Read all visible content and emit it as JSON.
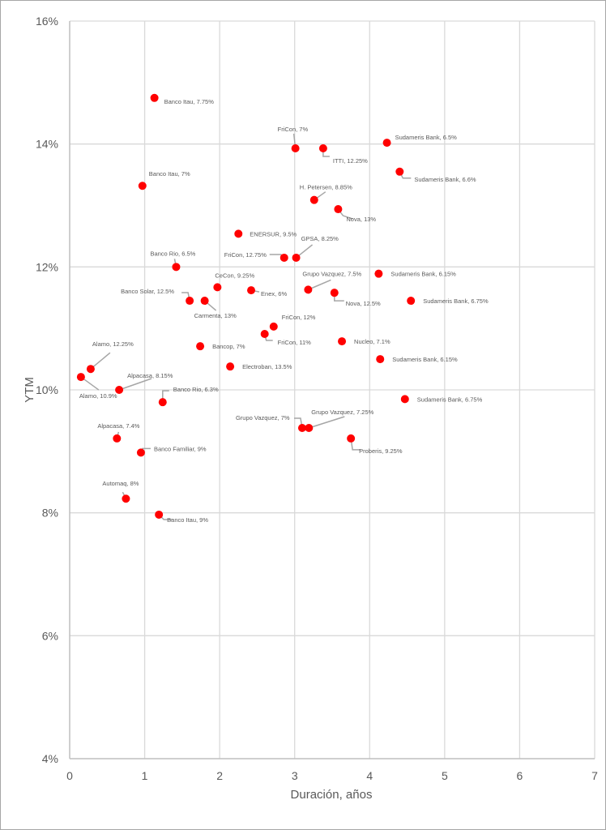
{
  "chart_data": {
    "type": "scatter",
    "title": "",
    "xlabel": "Duración, años",
    "ylabel": "YTM",
    "xlim": [
      0,
      7
    ],
    "ylim": [
      4,
      16
    ],
    "x_ticks": [
      "0",
      "1",
      "2",
      "3",
      "4",
      "5",
      "6",
      "7"
    ],
    "y_ticks": [
      "4%",
      "6%",
      "8%",
      "10%",
      "12%",
      "14%",
      "16%"
    ],
    "grid": true,
    "legend": "none",
    "marker_color": "#ff0000",
    "grid_color": "#d9d9d9",
    "points": [
      {
        "label": "Banco Itau, 7.75%",
        "x": 1.13,
        "y": 14.75
      },
      {
        "label": "Banco Itau, 7%",
        "x": 0.97,
        "y": 13.32
      },
      {
        "label": "FriCon, 7%",
        "x": 3.01,
        "y": 13.93
      },
      {
        "label": "ITTI, 12.25%",
        "x": 3.38,
        "y": 13.93
      },
      {
        "label": "Sudameris Bank, 6.5%",
        "x": 4.23,
        "y": 14.02
      },
      {
        "label": "Sudameris Bank, 6.6%",
        "x": 4.4,
        "y": 13.55
      },
      {
        "label": "H. Petersen, 8.85%",
        "x": 3.26,
        "y": 13.09
      },
      {
        "label": "Nova, 13%",
        "x": 3.58,
        "y": 12.94
      },
      {
        "label": "ENERSUR, 9.5%",
        "x": 2.25,
        "y": 12.54
      },
      {
        "label": "FriCon, 12.75%",
        "x": 2.86,
        "y": 12.15
      },
      {
        "label": "GPSA, 8.25%",
        "x": 3.02,
        "y": 12.15
      },
      {
        "label": "Banco Rio, 6.5%",
        "x": 1.42,
        "y": 12.0
      },
      {
        "label": "CeCon, 9.25%",
        "x": 1.97,
        "y": 11.67
      },
      {
        "label": "Enex, 6%",
        "x": 2.42,
        "y": 11.62
      },
      {
        "label": "Banco Solar, 12.5%",
        "x": 1.6,
        "y": 11.45
      },
      {
        "label": "Carmenta, 13%",
        "x": 1.8,
        "y": 11.45
      },
      {
        "label": "Grupo Vazquez, 7.5%",
        "x": 3.18,
        "y": 11.63
      },
      {
        "label": "Nova, 12.5%",
        "x": 3.53,
        "y": 11.58
      },
      {
        "label": "Sudameris Bank, 6.15%",
        "x": 4.12,
        "y": 11.89
      },
      {
        "label": "Sudameris Bank, 6.75%",
        "x": 4.55,
        "y": 11.45
      },
      {
        "label": "FriCon, 12%",
        "x": 2.72,
        "y": 11.03
      },
      {
        "label": "FriCon, 11%",
        "x": 2.6,
        "y": 10.91
      },
      {
        "label": "Nucleo, 7.1%",
        "x": 3.63,
        "y": 10.79
      },
      {
        "label": "Sudameris Bank, 6.15%",
        "x": 4.14,
        "y": 10.5
      },
      {
        "label": "Bancop, 7%",
        "x": 1.74,
        "y": 10.71
      },
      {
        "label": "Electroban, 13.5%",
        "x": 2.14,
        "y": 10.38
      },
      {
        "label": "Sudameris Bank, 6.75%",
        "x": 4.47,
        "y": 9.85
      },
      {
        "label": "Alamo, 12.25%",
        "x": 0.28,
        "y": 10.34
      },
      {
        "label": "Alamo, 10.9%",
        "x": 0.15,
        "y": 10.21
      },
      {
        "label": "Alpacasa, 8.15%",
        "x": 0.66,
        "y": 10.0
      },
      {
        "label": "Banco Rio, 6.3%",
        "x": 1.24,
        "y": 9.8
      },
      {
        "label": "Grupo Vazquez, 7%",
        "x": 3.1,
        "y": 9.38
      },
      {
        "label": "Grupo Vazquez, 7.25%",
        "x": 3.19,
        "y": 9.38
      },
      {
        "label": "Proberis, 9.25%",
        "x": 3.75,
        "y": 9.21
      },
      {
        "label": "Alpacasa, 7.4%",
        "x": 0.63,
        "y": 9.21
      },
      {
        "label": "Banco Familiar, 9%",
        "x": 0.95,
        "y": 8.98
      },
      {
        "label": "Automaq, 8%",
        "x": 0.75,
        "y": 8.23
      },
      {
        "label": "Banco Itau, 9%",
        "x": 1.19,
        "y": 7.97
      }
    ]
  }
}
